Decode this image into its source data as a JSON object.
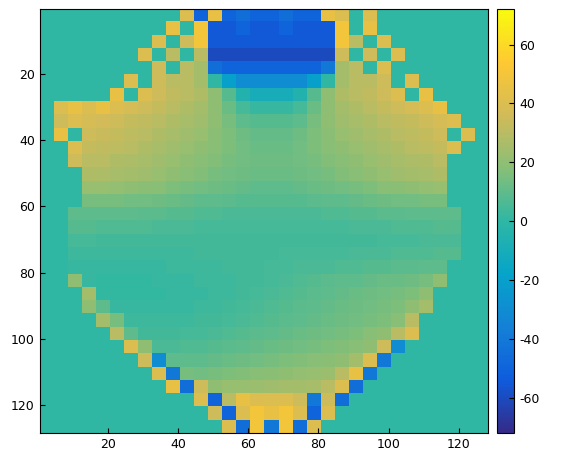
{
  "chart_data": {
    "type": "heatmap",
    "xlim": [
      0.5,
      128.5
    ],
    "ylim": [
      128.5,
      0.5
    ],
    "xticks": [
      20,
      40,
      60,
      80,
      100,
      120
    ],
    "yticks": [
      20,
      40,
      60,
      80,
      100,
      120
    ],
    "colorbar": {
      "range": [
        -72,
        72
      ],
      "ticks": [
        -60,
        -40,
        -20,
        0,
        20,
        40,
        60
      ]
    },
    "cells": [
      [
        0,
        0,
        0,
        0,
        0,
        0,
        0,
        0,
        0,
        0,
        40,
        -50,
        45,
        -50,
        -45,
        -50,
        -50,
        -45,
        -50,
        -50,
        45,
        40,
        0,
        40,
        0,
        0,
        0,
        0,
        0,
        0,
        0,
        0
      ],
      [
        0,
        0,
        0,
        0,
        0,
        0,
        0,
        0,
        0,
        45,
        0,
        50,
        -55,
        -55,
        -50,
        -55,
        -55,
        -50,
        -55,
        -55,
        -55,
        50,
        0,
        45,
        0,
        0,
        0,
        0,
        0,
        0,
        0,
        0
      ],
      [
        0,
        0,
        0,
        0,
        0,
        0,
        0,
        0,
        40,
        0,
        35,
        50,
        -55,
        -55,
        -55,
        -55,
        -55,
        -55,
        -55,
        -55,
        -55,
        50,
        30,
        0,
        40,
        0,
        0,
        0,
        0,
        0,
        0,
        0
      ],
      [
        0,
        0,
        0,
        0,
        0,
        0,
        0,
        40,
        0,
        30,
        0,
        30,
        -60,
        -60,
        -60,
        -60,
        -60,
        -60,
        -60,
        -60,
        -60,
        35,
        0,
        35,
        0,
        40,
        0,
        0,
        0,
        0,
        0,
        0
      ],
      [
        0,
        0,
        0,
        0,
        0,
        0,
        0,
        0,
        35,
        0,
        30,
        25,
        -45,
        -50,
        -50,
        -50,
        -50,
        -50,
        -50,
        -50,
        -40,
        25,
        30,
        0,
        40,
        0,
        0,
        0,
        0,
        0,
        0,
        0
      ],
      [
        0,
        0,
        0,
        0,
        0,
        0,
        40,
        0,
        35,
        30,
        30,
        25,
        0,
        -20,
        -30,
        -30,
        -30,
        -30,
        -30,
        -20,
        0,
        25,
        30,
        30,
        35,
        0,
        40,
        0,
        0,
        0,
        0,
        0
      ],
      [
        0,
        0,
        0,
        0,
        0,
        45,
        0,
        40,
        35,
        32,
        30,
        28,
        20,
        8,
        -5,
        -10,
        -10,
        -10,
        -5,
        8,
        20,
        28,
        30,
        32,
        35,
        40,
        0,
        45,
        0,
        0,
        0,
        0
      ],
      [
        0,
        40,
        45,
        40,
        45,
        40,
        38,
        35,
        33,
        30,
        28,
        25,
        20,
        12,
        5,
        2,
        2,
        2,
        5,
        12,
        20,
        25,
        28,
        30,
        33,
        35,
        38,
        40,
        45,
        0,
        0,
        0
      ],
      [
        0,
        35,
        40,
        38,
        36,
        35,
        33,
        32,
        30,
        28,
        26,
        24,
        20,
        15,
        10,
        8,
        8,
        8,
        10,
        15,
        20,
        24,
        26,
        28,
        30,
        32,
        33,
        35,
        38,
        40,
        0,
        0
      ],
      [
        0,
        45,
        0,
        35,
        34,
        33,
        31,
        30,
        28,
        26,
        24,
        22,
        19,
        16,
        13,
        11,
        11,
        11,
        13,
        16,
        19,
        22,
        24,
        26,
        28,
        30,
        31,
        33,
        35,
        0,
        40,
        0
      ],
      [
        0,
        0,
        40,
        33,
        32,
        31,
        30,
        28,
        26,
        24,
        22,
        20,
        18,
        16,
        14,
        12,
        12,
        12,
        14,
        16,
        18,
        20,
        22,
        24,
        26,
        28,
        30,
        31,
        33,
        40,
        0,
        0
      ],
      [
        0,
        0,
        35,
        30,
        30,
        28,
        27,
        26,
        24,
        22,
        20,
        18,
        17,
        15,
        14,
        13,
        13,
        13,
        14,
        15,
        17,
        18,
        20,
        22,
        24,
        26,
        27,
        28,
        30,
        0,
        0,
        0
      ],
      [
        0,
        0,
        0,
        28,
        27,
        26,
        25,
        24,
        22,
        20,
        18,
        17,
        15,
        14,
        13,
        12,
        12,
        12,
        13,
        14,
        15,
        17,
        18,
        20,
        22,
        24,
        25,
        26,
        28,
        0,
        0,
        0
      ],
      [
        0,
        0,
        0,
        22,
        22,
        21,
        20,
        19,
        18,
        16,
        15,
        14,
        13,
        12,
        11,
        10,
        10,
        10,
        11,
        12,
        13,
        14,
        15,
        16,
        18,
        19,
        20,
        21,
        22,
        0,
        0,
        0
      ],
      [
        0,
        0,
        0,
        15,
        15,
        15,
        14,
        14,
        13,
        12,
        11,
        10,
        10,
        9,
        8,
        8,
        8,
        8,
        8,
        9,
        10,
        10,
        11,
        12,
        13,
        14,
        14,
        15,
        15,
        0,
        0,
        0
      ],
      [
        0,
        0,
        10,
        10,
        10,
        10,
        10,
        9,
        9,
        8,
        8,
        7,
        7,
        6,
        6,
        6,
        6,
        6,
        6,
        6,
        7,
        7,
        8,
        8,
        9,
        9,
        10,
        10,
        10,
        10,
        0,
        0
      ],
      [
        0,
        0,
        8,
        8,
        7,
        7,
        7,
        7,
        6,
        6,
        6,
        5,
        5,
        5,
        5,
        5,
        5,
        5,
        5,
        5,
        5,
        5,
        6,
        6,
        6,
        7,
        7,
        7,
        8,
        8,
        0,
        0
      ],
      [
        0,
        0,
        5,
        5,
        4,
        4,
        4,
        4,
        4,
        4,
        4,
        4,
        4,
        4,
        4,
        4,
        4,
        4,
        4,
        4,
        4,
        4,
        4,
        4,
        5,
        5,
        5,
        6,
        6,
        6,
        0,
        0
      ],
      [
        0,
        0,
        3,
        3,
        3,
        3,
        3,
        3,
        3,
        3,
        3,
        4,
        4,
        4,
        4,
        4,
        4,
        5,
        5,
        5,
        5,
        5,
        6,
        6,
        6,
        7,
        7,
        7,
        8,
        8,
        0,
        0
      ],
      [
        0,
        0,
        2,
        2,
        2,
        2,
        2,
        2,
        2,
        3,
        3,
        3,
        3,
        4,
        4,
        4,
        5,
        5,
        6,
        6,
        6,
        7,
        7,
        8,
        8,
        9,
        9,
        10,
        10,
        0,
        0,
        0
      ],
      [
        0,
        0,
        20,
        2,
        1,
        1,
        1,
        1,
        2,
        2,
        2,
        3,
        3,
        3,
        4,
        4,
        5,
        6,
        7,
        8,
        9,
        10,
        10,
        11,
        12,
        12,
        13,
        15,
        20,
        0,
        0,
        0
      ],
      [
        0,
        0,
        0,
        25,
        1,
        1,
        1,
        1,
        1,
        2,
        2,
        2,
        3,
        3,
        4,
        5,
        6,
        7,
        8,
        9,
        10,
        11,
        12,
        13,
        14,
        15,
        16,
        20,
        0,
        0,
        0,
        0
      ],
      [
        0,
        0,
        0,
        20,
        10,
        2,
        2,
        2,
        2,
        2,
        2,
        3,
        3,
        4,
        5,
        6,
        7,
        8,
        9,
        10,
        11,
        12,
        13,
        14,
        15,
        16,
        20,
        25,
        0,
        0,
        0,
        0
      ],
      [
        0,
        0,
        0,
        0,
        25,
        15,
        3,
        3,
        3,
        3,
        3,
        4,
        4,
        5,
        6,
        7,
        8,
        9,
        10,
        11,
        12,
        13,
        14,
        15,
        16,
        18,
        30,
        0,
        0,
        0,
        0,
        0
      ],
      [
        0,
        0,
        0,
        0,
        0,
        30,
        10,
        4,
        4,
        4,
        5,
        5,
        6,
        7,
        8,
        9,
        10,
        11,
        12,
        13,
        14,
        15,
        16,
        18,
        20,
        30,
        40,
        0,
        0,
        0,
        0,
        0
      ],
      [
        0,
        0,
        0,
        0,
        0,
        0,
        40,
        20,
        6,
        6,
        7,
        7,
        8,
        9,
        10,
        11,
        12,
        13,
        14,
        15,
        16,
        17,
        18,
        20,
        35,
        -30,
        0,
        0,
        0,
        0,
        0,
        0
      ],
      [
        0,
        0,
        0,
        0,
        0,
        0,
        0,
        35,
        -30,
        10,
        10,
        10,
        11,
        12,
        13,
        14,
        15,
        16,
        17,
        18,
        19,
        20,
        25,
        40,
        -40,
        0,
        0,
        0,
        0,
        0,
        0,
        0
      ],
      [
        0,
        0,
        0,
        0,
        0,
        0,
        0,
        0,
        40,
        -40,
        15,
        14,
        15,
        16,
        17,
        18,
        19,
        20,
        21,
        22,
        23,
        30,
        45,
        -40,
        0,
        0,
        0,
        0,
        0,
        0,
        0,
        0
      ],
      [
        0,
        0,
        0,
        0,
        0,
        0,
        0,
        0,
        0,
        45,
        -45,
        35,
        20,
        22,
        22,
        23,
        24,
        25,
        25,
        26,
        30,
        40,
        -45,
        0,
        0,
        0,
        0,
        0,
        0,
        0,
        0,
        0
      ],
      [
        0,
        0,
        0,
        0,
        0,
        0,
        0,
        0,
        0,
        0,
        0,
        40,
        -50,
        30,
        45,
        40,
        40,
        40,
        35,
        -40,
        35,
        -45,
        0,
        0,
        0,
        0,
        0,
        0,
        0,
        0,
        0,
        0
      ],
      [
        0,
        0,
        0,
        0,
        0,
        0,
        0,
        0,
        0,
        0,
        0,
        0,
        35,
        -50,
        40,
        50,
        45,
        50,
        40,
        -50,
        40,
        0,
        0,
        0,
        0,
        0,
        0,
        0,
        0,
        0,
        0,
        0
      ],
      [
        0,
        0,
        0,
        0,
        0,
        0,
        0,
        0,
        0,
        0,
        0,
        0,
        0,
        40,
        -45,
        50,
        -40,
        50,
        -45,
        40,
        0,
        0,
        0,
        0,
        0,
        0,
        0,
        0,
        0,
        0,
        0,
        0
      ]
    ]
  }
}
